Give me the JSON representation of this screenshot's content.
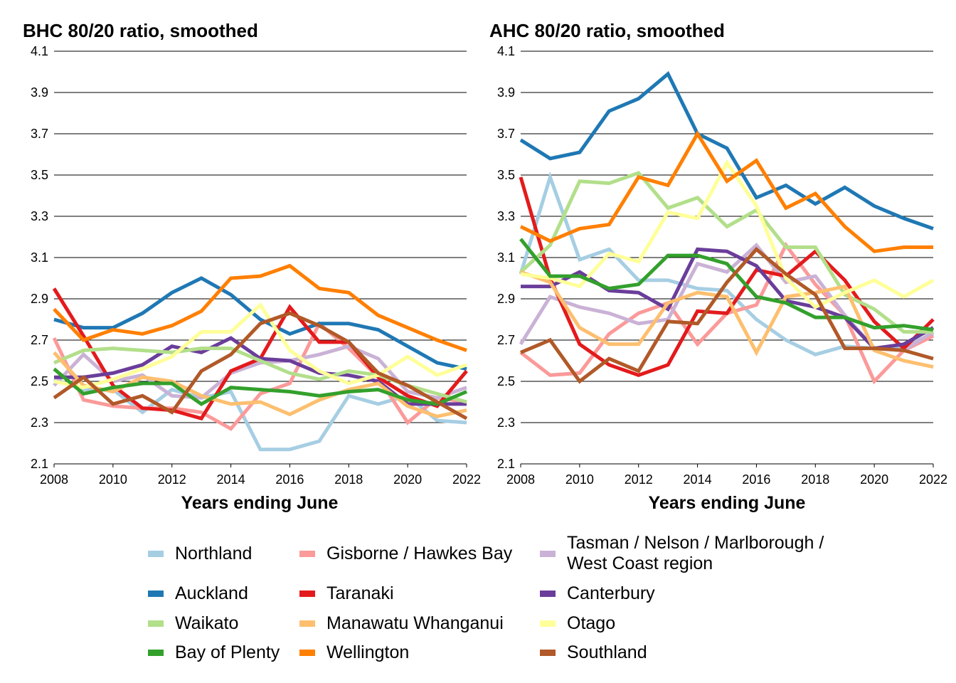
{
  "legend": [
    {
      "name": "Northland",
      "color": "#a6cee3"
    },
    {
      "name": "Gisborne / Hawkes Bay",
      "color": "#fb9a99"
    },
    {
      "name": "Tasman / Nelson / Marlborough / West Coast region",
      "color": "#cab2d6"
    },
    {
      "name": "Auckland",
      "color": "#1f78b4"
    },
    {
      "name": "Taranaki",
      "color": "#e31a1c"
    },
    {
      "name": "Canterbury",
      "color": "#6a3d9a"
    },
    {
      "name": "Waikato",
      "color": "#b2df8a"
    },
    {
      "name": "Manawatu Whanganui",
      "color": "#fdbf6f"
    },
    {
      "name": "Otago",
      "color": "#ffff99"
    },
    {
      "name": "Bay of Plenty",
      "color": "#33a02c"
    },
    {
      "name": "Wellington",
      "color": "#ff7f00"
    },
    {
      "name": "Southland",
      "color": "#b15928"
    }
  ],
  "legend_labels": {
    "tasman_line1": "Tasman / Nelson / Marlborough /",
    "tasman_line2": "West Coast region"
  },
  "chart_data": [
    {
      "type": "line",
      "title": "BHC 80/20 ratio, smoothed",
      "xlabel": "Years ending June",
      "ylabel": "",
      "x": [
        2008,
        2009,
        2010,
        2011,
        2012,
        2013,
        2014,
        2015,
        2016,
        2017,
        2018,
        2019,
        2020,
        2021,
        2022
      ],
      "xticks": [
        "2008",
        "2010",
        "2012",
        "2014",
        "2016",
        "2018",
        "2020",
        "2022"
      ],
      "yticks": [
        "2.1",
        "2.3",
        "2.5",
        "2.7",
        "2.9",
        "3.1",
        "3.3",
        "3.5",
        "3.7",
        "3.9",
        "4.1"
      ],
      "ylim": [
        2.1,
        4.1
      ],
      "grid": "horizontal",
      "series": [
        {
          "name": "Northland",
          "values": [
            2.51,
            2.46,
            2.46,
            2.35,
            2.46,
            2.42,
            2.45,
            2.17,
            2.17,
            2.21,
            2.43,
            2.39,
            2.43,
            2.31,
            2.3
          ]
        },
        {
          "name": "Gisborne / Hawkes Bay",
          "values": [
            2.71,
            2.41,
            2.38,
            2.37,
            2.37,
            2.35,
            2.27,
            2.44,
            2.49,
            2.78,
            2.66,
            2.52,
            2.3,
            2.42,
            2.4
          ]
        },
        {
          "name": "Tasman / Nelson / Marlborough / West Coast region",
          "values": [
            2.48,
            2.63,
            2.5,
            2.53,
            2.43,
            2.42,
            2.54,
            2.59,
            2.6,
            2.63,
            2.67,
            2.61,
            2.45,
            2.42,
            2.47
          ]
        },
        {
          "name": "Auckland",
          "values": [
            2.8,
            2.76,
            2.76,
            2.83,
            2.93,
            3.0,
            2.92,
            2.8,
            2.73,
            2.78,
            2.78,
            2.75,
            2.67,
            2.59,
            2.56
          ]
        },
        {
          "name": "Taranaki",
          "values": [
            2.95,
            2.72,
            2.48,
            2.37,
            2.36,
            2.32,
            2.55,
            2.61,
            2.86,
            2.69,
            2.69,
            2.52,
            2.43,
            2.38,
            2.55
          ]
        },
        {
          "name": "Canterbury",
          "values": [
            2.52,
            2.52,
            2.54,
            2.58,
            2.67,
            2.64,
            2.71,
            2.61,
            2.6,
            2.54,
            2.53,
            2.5,
            2.39,
            2.39,
            2.39
          ]
        },
        {
          "name": "Waikato",
          "values": [
            2.59,
            2.65,
            2.66,
            2.65,
            2.64,
            2.66,
            2.66,
            2.6,
            2.54,
            2.51,
            2.55,
            2.53,
            2.48,
            2.44,
            2.4
          ]
        },
        {
          "name": "Manawatu Whanganui",
          "values": [
            2.64,
            2.48,
            2.45,
            2.52,
            2.5,
            2.43,
            2.39,
            2.4,
            2.34,
            2.41,
            2.46,
            2.49,
            2.38,
            2.33,
            2.36
          ]
        },
        {
          "name": "Otago",
          "values": [
            2.5,
            2.47,
            2.51,
            2.56,
            2.62,
            2.74,
            2.74,
            2.87,
            2.65,
            2.55,
            2.49,
            2.53,
            2.62,
            2.53,
            2.58
          ]
        },
        {
          "name": "Bay of Plenty",
          "values": [
            2.56,
            2.44,
            2.47,
            2.49,
            2.49,
            2.39,
            2.47,
            2.46,
            2.45,
            2.43,
            2.45,
            2.46,
            2.41,
            2.39,
            2.45
          ]
        },
        {
          "name": "Wellington",
          "values": [
            2.85,
            2.7,
            2.75,
            2.73,
            2.77,
            2.84,
            3.0,
            3.01,
            3.06,
            2.95,
            2.93,
            2.82,
            2.76,
            2.7,
            2.65
          ]
        },
        {
          "name": "Southland",
          "values": [
            2.42,
            2.52,
            2.39,
            2.43,
            2.35,
            2.55,
            2.63,
            2.78,
            2.83,
            2.77,
            2.69,
            2.54,
            2.48,
            2.4,
            2.32
          ]
        }
      ]
    },
    {
      "type": "line",
      "title": "AHC 80/20 ratio, smoothed",
      "xlabel": "Years ending June",
      "ylabel": "",
      "x": [
        2008,
        2009,
        2010,
        2011,
        2012,
        2013,
        2014,
        2015,
        2016,
        2017,
        2018,
        2019,
        2020,
        2021,
        2022
      ],
      "xticks": [
        "2008",
        "2010",
        "2012",
        "2014",
        "2016",
        "2018",
        "2020",
        "2022"
      ],
      "yticks": [
        "2.1",
        "2.3",
        "2.5",
        "2.7",
        "2.9",
        "3.1",
        "3.3",
        "3.5",
        "3.7",
        "3.9",
        "4.1"
      ],
      "ylim": [
        2.1,
        4.1
      ],
      "grid": "horizontal",
      "series": [
        {
          "name": "Northland",
          "values": [
            3.02,
            3.49,
            3.09,
            3.14,
            2.99,
            2.99,
            2.95,
            2.94,
            2.8,
            2.7,
            2.63,
            2.67,
            2.66,
            2.67,
            2.73
          ]
        },
        {
          "name": "Gisborne / Hawkes Bay",
          "values": [
            2.64,
            2.53,
            2.54,
            2.73,
            2.83,
            2.88,
            2.68,
            2.83,
            2.87,
            3.16,
            2.97,
            2.82,
            2.5,
            2.65,
            2.72
          ]
        },
        {
          "name": "Tasman / Nelson / Marlborough / West Coast region",
          "values": [
            2.68,
            2.91,
            2.86,
            2.83,
            2.78,
            2.8,
            3.07,
            3.03,
            3.16,
            2.98,
            3.01,
            2.82,
            2.66,
            2.65,
            2.74
          ]
        },
        {
          "name": "Auckland",
          "values": [
            3.67,
            3.58,
            3.61,
            3.81,
            3.87,
            3.99,
            3.7,
            3.63,
            3.39,
            3.45,
            3.36,
            3.44,
            3.35,
            3.29,
            3.24
          ]
        },
        {
          "name": "Taranaki",
          "values": [
            3.49,
            3.0,
            2.68,
            2.58,
            2.53,
            2.58,
            2.84,
            2.83,
            3.04,
            3.01,
            3.13,
            2.99,
            2.79,
            2.66,
            2.8
          ]
        },
        {
          "name": "Canterbury",
          "values": [
            2.96,
            2.96,
            3.03,
            2.94,
            2.93,
            2.85,
            3.14,
            3.13,
            3.06,
            2.89,
            2.86,
            2.81,
            2.66,
            2.68,
            2.76
          ]
        },
        {
          "name": "Waikato",
          "values": [
            3.03,
            3.16,
            3.47,
            3.46,
            3.51,
            3.34,
            3.39,
            3.25,
            3.33,
            3.15,
            3.15,
            2.92,
            2.85,
            2.74,
            2.74
          ]
        },
        {
          "name": "Manawatu Whanganui",
          "values": [
            3.03,
            2.98,
            2.76,
            2.68,
            2.68,
            2.88,
            2.93,
            2.91,
            2.64,
            2.91,
            2.93,
            2.96,
            2.65,
            2.6,
            2.57
          ]
        },
        {
          "name": "Otago",
          "values": [
            3.02,
            3.0,
            2.96,
            3.12,
            3.08,
            3.32,
            3.29,
            3.56,
            3.35,
            3.0,
            2.86,
            2.93,
            2.99,
            2.91,
            2.99
          ]
        },
        {
          "name": "Bay of Plenty",
          "values": [
            3.19,
            3.01,
            3.01,
            2.95,
            2.97,
            3.11,
            3.11,
            3.07,
            2.91,
            2.88,
            2.81,
            2.81,
            2.76,
            2.77,
            2.75
          ]
        },
        {
          "name": "Wellington",
          "values": [
            3.25,
            3.18,
            3.24,
            3.26,
            3.49,
            3.45,
            3.7,
            3.47,
            3.57,
            3.34,
            3.41,
            3.25,
            3.13,
            3.15,
            3.15
          ]
        },
        {
          "name": "Southland",
          "values": [
            2.64,
            2.7,
            2.5,
            2.61,
            2.55,
            2.79,
            2.78,
            2.98,
            3.14,
            3.02,
            2.92,
            2.66,
            2.66,
            2.65,
            2.61
          ]
        }
      ]
    }
  ]
}
